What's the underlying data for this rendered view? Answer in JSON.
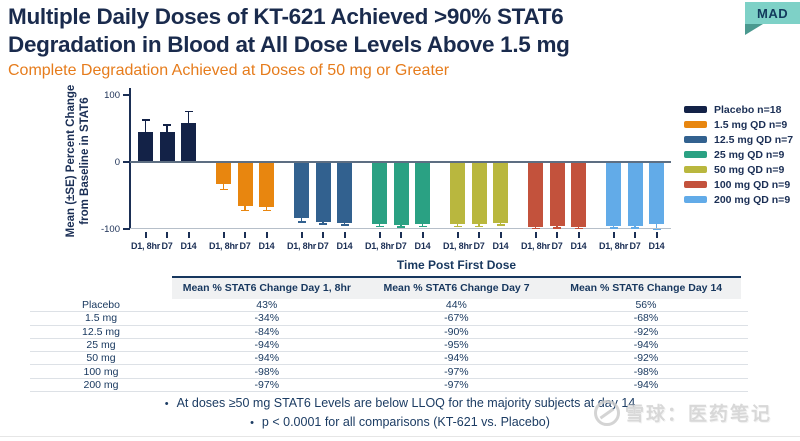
{
  "badge": {
    "label": "MAD"
  },
  "title": {
    "line1": "Multiple Daily Doses of KT-621 Achieved >90% STAT6",
    "line2": "Degradation in Blood at All Dose Levels Above 1.5 mg",
    "full": "Multiple Daily Doses of KT-621 Achieved >90% STAT6 Degradation in Blood at All Dose Levels Above 1.5 mg"
  },
  "subtitle": "Complete Degradation Achieved at Doses of 50 mg or Greater",
  "chart_data": {
    "type": "bar",
    "title": "",
    "xlabel": "Time Post First Dose",
    "ylabel": "Mean (±SE) Percent Change from Baseline in STAT6",
    "ylabel_lines": [
      "Mean (±SE) Percent Change",
      "from Baseline in STAT6"
    ],
    "ylim": [
      -100,
      100
    ],
    "yticks": [
      100,
      0,
      -100
    ],
    "ytick_labels": [
      "100",
      "0",
      "-100"
    ],
    "grid": false,
    "legend_position": "right",
    "timepoints": [
      "D1, 8hr",
      "D7",
      "D14"
    ],
    "series": [
      {
        "name": "Placebo n=18",
        "color": "#132247",
        "values": [
          43,
          44,
          56
        ],
        "se": [
          19,
          11,
          19
        ]
      },
      {
        "name": "1.5 mg QD n=9",
        "color": "#e8860f",
        "values": [
          -34,
          -67,
          -68
        ],
        "se": [
          7,
          5,
          4
        ]
      },
      {
        "name": "12.5 mg QD n=7",
        "color": "#32618f",
        "values": [
          -84,
          -90,
          -92
        ],
        "se": [
          5,
          2,
          2
        ]
      },
      {
        "name": "25 mg QD n=9",
        "color": "#2aa183",
        "values": [
          -94,
          -95,
          -94
        ],
        "se": [
          2,
          2,
          2
        ]
      },
      {
        "name": "50 mg QD n=9",
        "color": "#b9b73e",
        "values": [
          -94,
          -94,
          -92
        ],
        "se": [
          2,
          2,
          2
        ]
      },
      {
        "name": "100 mg QD n=9",
        "color": "#c3523c",
        "values": [
          -98,
          -97,
          -98
        ],
        "se": [
          1,
          1,
          1
        ]
      },
      {
        "name": "200 mg QD n=9",
        "color": "#62abe8",
        "values": [
          -97,
          -97,
          -94
        ],
        "se": [
          1,
          1,
          6
        ]
      }
    ]
  },
  "table": {
    "super_header": "Time Post First Dose",
    "columns": [
      "Mean % STAT6 Change Day 1, 8hr",
      "Mean % STAT6 Change Day 7",
      "Mean % STAT6 Change Day 14"
    ],
    "rows": [
      {
        "label": "Placebo",
        "values": [
          "43%",
          "44%",
          "56%"
        ]
      },
      {
        "label": "1.5 mg",
        "values": [
          "-34%",
          "-67%",
          "-68%"
        ]
      },
      {
        "label": "12.5 mg",
        "values": [
          "-84%",
          "-90%",
          "-92%"
        ]
      },
      {
        "label": "25 mg",
        "values": [
          "-94%",
          "-95%",
          "-94%"
        ]
      },
      {
        "label": "50 mg",
        "values": [
          "-94%",
          "-94%",
          "-92%"
        ]
      },
      {
        "label": "100 mg",
        "values": [
          "-98%",
          "-97%",
          "-98%"
        ]
      },
      {
        "label": "200 mg",
        "values": [
          "-97%",
          "-97%",
          "-94%"
        ]
      }
    ]
  },
  "bullet_char": "•",
  "footnotes": [
    "At doses ≥50 mg STAT6 Levels are below LLOQ for the majority subjects at day 14",
    "p < 0.0001 for all comparisons (KT-621 vs. Placebo)"
  ],
  "watermark": {
    "text": "雪球：医药笔记"
  }
}
